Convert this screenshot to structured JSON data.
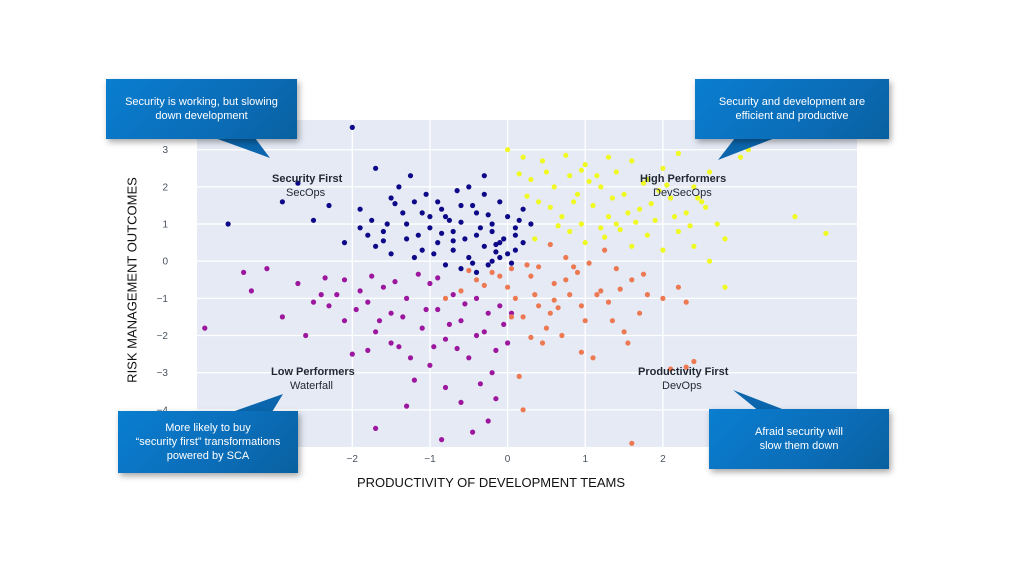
{
  "chart_data": {
    "type": "scatter",
    "xlabel": "PRODUCTIVITY OF DEVELOPMENT TEAMS",
    "ylabel": "RISK MANAGEMENT OUTCOMES",
    "xlim": [
      -4.0,
      4.5
    ],
    "ylim": [
      -5.0,
      3.8
    ],
    "x_ticks": [
      -2,
      -1,
      0,
      1,
      2
    ],
    "y_ticks": [
      3,
      2,
      1,
      0,
      -1,
      -2,
      -3,
      -4
    ],
    "x_tick_labels": [
      "−2",
      "−1",
      "0",
      "1",
      "2"
    ],
    "y_tick_labels": [
      "3",
      "2",
      "1",
      "0",
      "−1",
      "−2",
      "−3",
      "−4"
    ],
    "grid": true,
    "quadrants": [
      {
        "title": "Security First",
        "subtitle": "SecOps"
      },
      {
        "title": "High Performers",
        "subtitle": "DevSecOps"
      },
      {
        "title": "Low Performers",
        "subtitle": "Waterfall"
      },
      {
        "title": "Productivity First",
        "subtitle": "DevOps"
      }
    ],
    "colors": {
      "security_first": "#0d0887",
      "high_performers": "#f0f921",
      "low_performers": "#9c179e",
      "productivity_first": "#ed7953"
    },
    "series": [
      {
        "color": "#0d0887",
        "points": [
          [
            -2.7,
            2.1
          ],
          [
            -2.9,
            1.6
          ],
          [
            -3.6,
            1.0
          ],
          [
            -2.3,
            1.5
          ],
          [
            -2.5,
            1.1
          ],
          [
            -1.9,
            1.4
          ],
          [
            -1.7,
            2.5
          ],
          [
            -1.5,
            1.7
          ],
          [
            -1.4,
            2.0
          ],
          [
            -2.0,
            3.6
          ],
          [
            -1.9,
            0.9
          ],
          [
            -1.6,
            0.8
          ],
          [
            -1.3,
            1.0
          ],
          [
            -1.2,
            1.6
          ],
          [
            -1.1,
            1.3
          ],
          [
            -1.0,
            0.9
          ],
          [
            -0.9,
            1.6
          ],
          [
            -0.8,
            1.2
          ],
          [
            -0.7,
            0.8
          ],
          [
            -0.6,
            1.5
          ],
          [
            -0.5,
            2.0
          ],
          [
            -0.4,
            1.3
          ],
          [
            -0.3,
            1.8
          ],
          [
            -0.2,
            1.0
          ],
          [
            -0.1,
            1.6
          ],
          [
            0.0,
            1.2
          ],
          [
            0.1,
            0.7
          ],
          [
            0.2,
            1.4
          ],
          [
            -0.1,
            0.5
          ],
          [
            -0.3,
            0.4
          ],
          [
            -0.5,
            0.1
          ],
          [
            -0.7,
            0.3
          ],
          [
            -0.9,
            0.5
          ],
          [
            -1.1,
            0.3
          ],
          [
            -1.3,
            0.6
          ],
          [
            -1.5,
            0.2
          ],
          [
            -1.7,
            0.4
          ],
          [
            -1.8,
            0.7
          ],
          [
            -1.2,
            0.1
          ],
          [
            -0.8,
            -0.1
          ],
          [
            -0.6,
            -0.2
          ],
          [
            -0.4,
            -0.3
          ],
          [
            -0.2,
            0.0
          ],
          [
            0.0,
            0.2
          ],
          [
            0.1,
            0.9
          ],
          [
            0.3,
            1.0
          ],
          [
            0.2,
            0.5
          ],
          [
            -0.05,
            0.6
          ],
          [
            -0.15,
            0.25
          ],
          [
            -0.35,
            0.9
          ],
          [
            -0.55,
            0.6
          ],
          [
            -0.75,
            1.1
          ],
          [
            -0.95,
            0.2
          ],
          [
            -1.15,
            0.7
          ],
          [
            -1.35,
            1.3
          ],
          [
            -1.55,
            1.0
          ],
          [
            -1.75,
            1.1
          ],
          [
            -0.25,
            1.25
          ],
          [
            -0.45,
            1.5
          ],
          [
            -0.65,
            1.9
          ],
          [
            -0.85,
            1.4
          ],
          [
            -1.05,
            1.8
          ],
          [
            -1.25,
            2.3
          ],
          [
            -0.3,
            2.3
          ],
          [
            -0.1,
            0.1
          ],
          [
            0.05,
            -0.05
          ],
          [
            -0.45,
            -0.05
          ],
          [
            -0.85,
            0.75
          ],
          [
            -1.45,
            1.55
          ],
          [
            -2.1,
            0.5
          ],
          [
            -0.2,
            0.8
          ],
          [
            0.15,
            1.1
          ],
          [
            -0.6,
            1.05
          ],
          [
            -1.0,
            1.2
          ],
          [
            -0.4,
            0.7
          ],
          [
            -0.15,
            0.45
          ],
          [
            -0.7,
            0.55
          ],
          [
            -1.6,
            0.55
          ],
          [
            -0.25,
            -0.1
          ],
          [
            0.1,
            0.3
          ]
        ]
      },
      {
        "color": "#f0f921",
        "points": [
          [
            0.0,
            3.0
          ],
          [
            0.2,
            2.8
          ],
          [
            0.5,
            2.4
          ],
          [
            0.6,
            2.0
          ],
          [
            0.8,
            2.3
          ],
          [
            0.9,
            1.8
          ],
          [
            1.0,
            2.6
          ],
          [
            1.1,
            1.5
          ],
          [
            1.2,
            2.0
          ],
          [
            1.3,
            1.2
          ],
          [
            1.4,
            2.4
          ],
          [
            1.5,
            1.8
          ],
          [
            1.6,
            2.7
          ],
          [
            1.7,
            1.4
          ],
          [
            1.8,
            2.2
          ],
          [
            1.9,
            1.1
          ],
          [
            2.0,
            2.5
          ],
          [
            2.1,
            1.7
          ],
          [
            2.2,
            2.9
          ],
          [
            2.3,
            1.3
          ],
          [
            2.4,
            2.0
          ],
          [
            2.5,
            1.6
          ],
          [
            2.6,
            2.4
          ],
          [
            2.7,
            1.0
          ],
          [
            2.8,
            0.6
          ],
          [
            3.0,
            2.8
          ],
          [
            3.1,
            3.0
          ],
          [
            3.7,
            3.6
          ],
          [
            3.7,
            1.2
          ],
          [
            4.1,
            0.75
          ],
          [
            0.3,
            2.2
          ],
          [
            0.4,
            1.6
          ],
          [
            0.7,
            1.2
          ],
          [
            0.8,
            0.8
          ],
          [
            1.0,
            0.5
          ],
          [
            1.2,
            0.9
          ],
          [
            1.4,
            1.0
          ],
          [
            1.6,
            0.4
          ],
          [
            1.8,
            0.7
          ],
          [
            2.0,
            0.3
          ],
          [
            2.2,
            0.8
          ],
          [
            2.4,
            0.4
          ],
          [
            2.6,
            0.0
          ],
          [
            2.8,
            -0.7
          ],
          [
            0.55,
            1.45
          ],
          [
            0.95,
            1.0
          ],
          [
            1.15,
            2.3
          ],
          [
            1.35,
            1.7
          ],
          [
            1.55,
            1.3
          ],
          [
            1.75,
            2.1
          ],
          [
            1.95,
            1.9
          ],
          [
            2.15,
            1.2
          ],
          [
            2.35,
            0.95
          ],
          [
            2.55,
            1.45
          ],
          [
            0.45,
            2.7
          ],
          [
            0.75,
            2.85
          ],
          [
            1.05,
            2.15
          ],
          [
            1.25,
            0.65
          ],
          [
            1.45,
            0.85
          ],
          [
            0.25,
            1.75
          ],
          [
            0.65,
            0.95
          ],
          [
            0.85,
            1.6
          ],
          [
            1.65,
            1.05
          ],
          [
            1.85,
            1.55
          ],
          [
            2.05,
            2.05
          ],
          [
            0.35,
            0.6
          ],
          [
            2.45,
            1.7
          ],
          [
            0.15,
            2.35
          ],
          [
            1.3,
            2.8
          ],
          [
            0.95,
            2.45
          ]
        ]
      },
      {
        "color": "#9c179e",
        "points": [
          [
            -3.9,
            -1.8
          ],
          [
            -3.4,
            -0.3
          ],
          [
            -3.3,
            -0.8
          ],
          [
            -3.1,
            -0.2
          ],
          [
            -2.9,
            -1.5
          ],
          [
            -2.7,
            -0.6
          ],
          [
            -2.6,
            -2.0
          ],
          [
            -2.4,
            -0.9
          ],
          [
            -2.3,
            -1.2
          ],
          [
            -2.1,
            -1.6
          ],
          [
            -1.9,
            -0.8
          ],
          [
            -1.8,
            -1.1
          ],
          [
            -1.7,
            -1.9
          ],
          [
            -1.6,
            -0.7
          ],
          [
            -1.5,
            -1.4
          ],
          [
            -1.4,
            -2.3
          ],
          [
            -1.3,
            -1.0
          ],
          [
            -1.2,
            -3.2
          ],
          [
            -1.1,
            -1.8
          ],
          [
            -1.0,
            -0.6
          ],
          [
            -0.9,
            -1.3
          ],
          [
            -0.8,
            -2.1
          ],
          [
            -0.7,
            -0.9
          ],
          [
            -0.6,
            -1.6
          ],
          [
            -0.5,
            -2.6
          ],
          [
            -0.4,
            -1.0
          ],
          [
            -0.3,
            -1.9
          ],
          [
            -0.2,
            -3.0
          ],
          [
            -0.1,
            -1.2
          ],
          [
            0.0,
            -2.2
          ],
          [
            -2.0,
            -2.5
          ],
          [
            -1.8,
            -2.4
          ],
          [
            -1.5,
            -2.2
          ],
          [
            -1.3,
            -3.9
          ],
          [
            -1.0,
            -2.8
          ],
          [
            -0.8,
            -3.4
          ],
          [
            -0.6,
            -3.8
          ],
          [
            -0.35,
            -3.3
          ],
          [
            -0.15,
            -3.7
          ],
          [
            0.05,
            -1.4
          ],
          [
            -2.8,
            -4.1
          ],
          [
            -3.2,
            -4.4
          ],
          [
            -1.7,
            -4.5
          ],
          [
            -0.85,
            -4.8
          ],
          [
            -0.45,
            -4.6
          ],
          [
            -0.25,
            -4.3
          ],
          [
            -2.5,
            -1.1
          ],
          [
            -2.2,
            -0.9
          ],
          [
            -1.95,
            -1.3
          ],
          [
            -1.65,
            -1.6
          ],
          [
            -1.35,
            -1.5
          ],
          [
            -1.05,
            -1.3
          ],
          [
            -0.75,
            -1.7
          ],
          [
            -0.55,
            -1.15
          ],
          [
            -0.25,
            -1.4
          ],
          [
            -1.45,
            -0.55
          ],
          [
            -1.15,
            -0.35
          ],
          [
            -0.95,
            -2.3
          ],
          [
            -0.65,
            -2.35
          ],
          [
            -0.05,
            -1.7
          ],
          [
            -2.1,
            -0.5
          ],
          [
            -1.75,
            -0.4
          ],
          [
            -0.4,
            -2.0
          ],
          [
            -0.15,
            -2.4
          ],
          [
            -1.25,
            -2.6
          ],
          [
            -2.35,
            -0.45
          ],
          [
            -3.0,
            -4.25
          ],
          [
            -0.9,
            -0.45
          ]
        ]
      },
      {
        "color": "#ed7953",
        "points": [
          [
            -0.8,
            -1.0
          ],
          [
            -0.6,
            -0.8
          ],
          [
            -0.4,
            -0.5
          ],
          [
            -0.2,
            -0.3
          ],
          [
            0.0,
            -0.7
          ],
          [
            0.1,
            -1.0
          ],
          [
            0.2,
            -1.5
          ],
          [
            0.3,
            -0.4
          ],
          [
            0.4,
            -1.2
          ],
          [
            0.5,
            -1.8
          ],
          [
            0.6,
            -0.6
          ],
          [
            0.7,
            -2.0
          ],
          [
            0.8,
            -0.9
          ],
          [
            0.9,
            -0.3
          ],
          [
            1.0,
            -1.6
          ],
          [
            1.1,
            -2.6
          ],
          [
            1.2,
            -0.8
          ],
          [
            1.3,
            -1.1
          ],
          [
            1.4,
            -0.2
          ],
          [
            1.5,
            -1.9
          ],
          [
            1.6,
            -0.5
          ],
          [
            1.7,
            -1.4
          ],
          [
            1.8,
            -0.9
          ],
          [
            2.0,
            -1.0
          ],
          [
            2.1,
            -2.9
          ],
          [
            2.2,
            -0.7
          ],
          [
            2.3,
            -1.1
          ],
          [
            2.4,
            -2.7
          ],
          [
            2.3,
            -2.85
          ],
          [
            1.6,
            -4.9
          ],
          [
            0.15,
            -3.1
          ],
          [
            0.2,
            -4.0
          ],
          [
            0.45,
            -2.2
          ],
          [
            0.55,
            -1.4
          ],
          [
            0.75,
            -0.5
          ],
          [
            0.95,
            -1.2
          ],
          [
            1.15,
            -0.9
          ],
          [
            0.35,
            -0.9
          ],
          [
            0.65,
            -1.25
          ],
          [
            0.85,
            -0.15
          ],
          [
            -0.5,
            -0.25
          ],
          [
            -0.3,
            -0.65
          ],
          [
            0.05,
            -0.2
          ],
          [
            0.25,
            -0.1
          ],
          [
            1.05,
            -0.05
          ],
          [
            1.25,
            0.3
          ],
          [
            1.45,
            -0.75
          ],
          [
            0.55,
            0.45
          ],
          [
            0.75,
            0.1
          ],
          [
            -0.1,
            -0.4
          ],
          [
            0.4,
            -0.15
          ],
          [
            1.35,
            -1.6
          ],
          [
            1.55,
            -2.2
          ],
          [
            0.05,
            -1.5
          ],
          [
            0.6,
            -1.05
          ],
          [
            0.95,
            -2.45
          ],
          [
            1.75,
            -0.35
          ],
          [
            0.3,
            -2.05
          ]
        ]
      }
    ]
  },
  "callouts": {
    "top_left": [
      "Security is working, but slowing",
      "down development"
    ],
    "top_right": [
      "Security and development are",
      "efficient and productive"
    ],
    "bottom_left": [
      "More likely to buy",
      "“security first” transformations",
      "powered by SCA"
    ],
    "bottom_right": [
      "Afraid security will",
      "slow them down"
    ]
  }
}
